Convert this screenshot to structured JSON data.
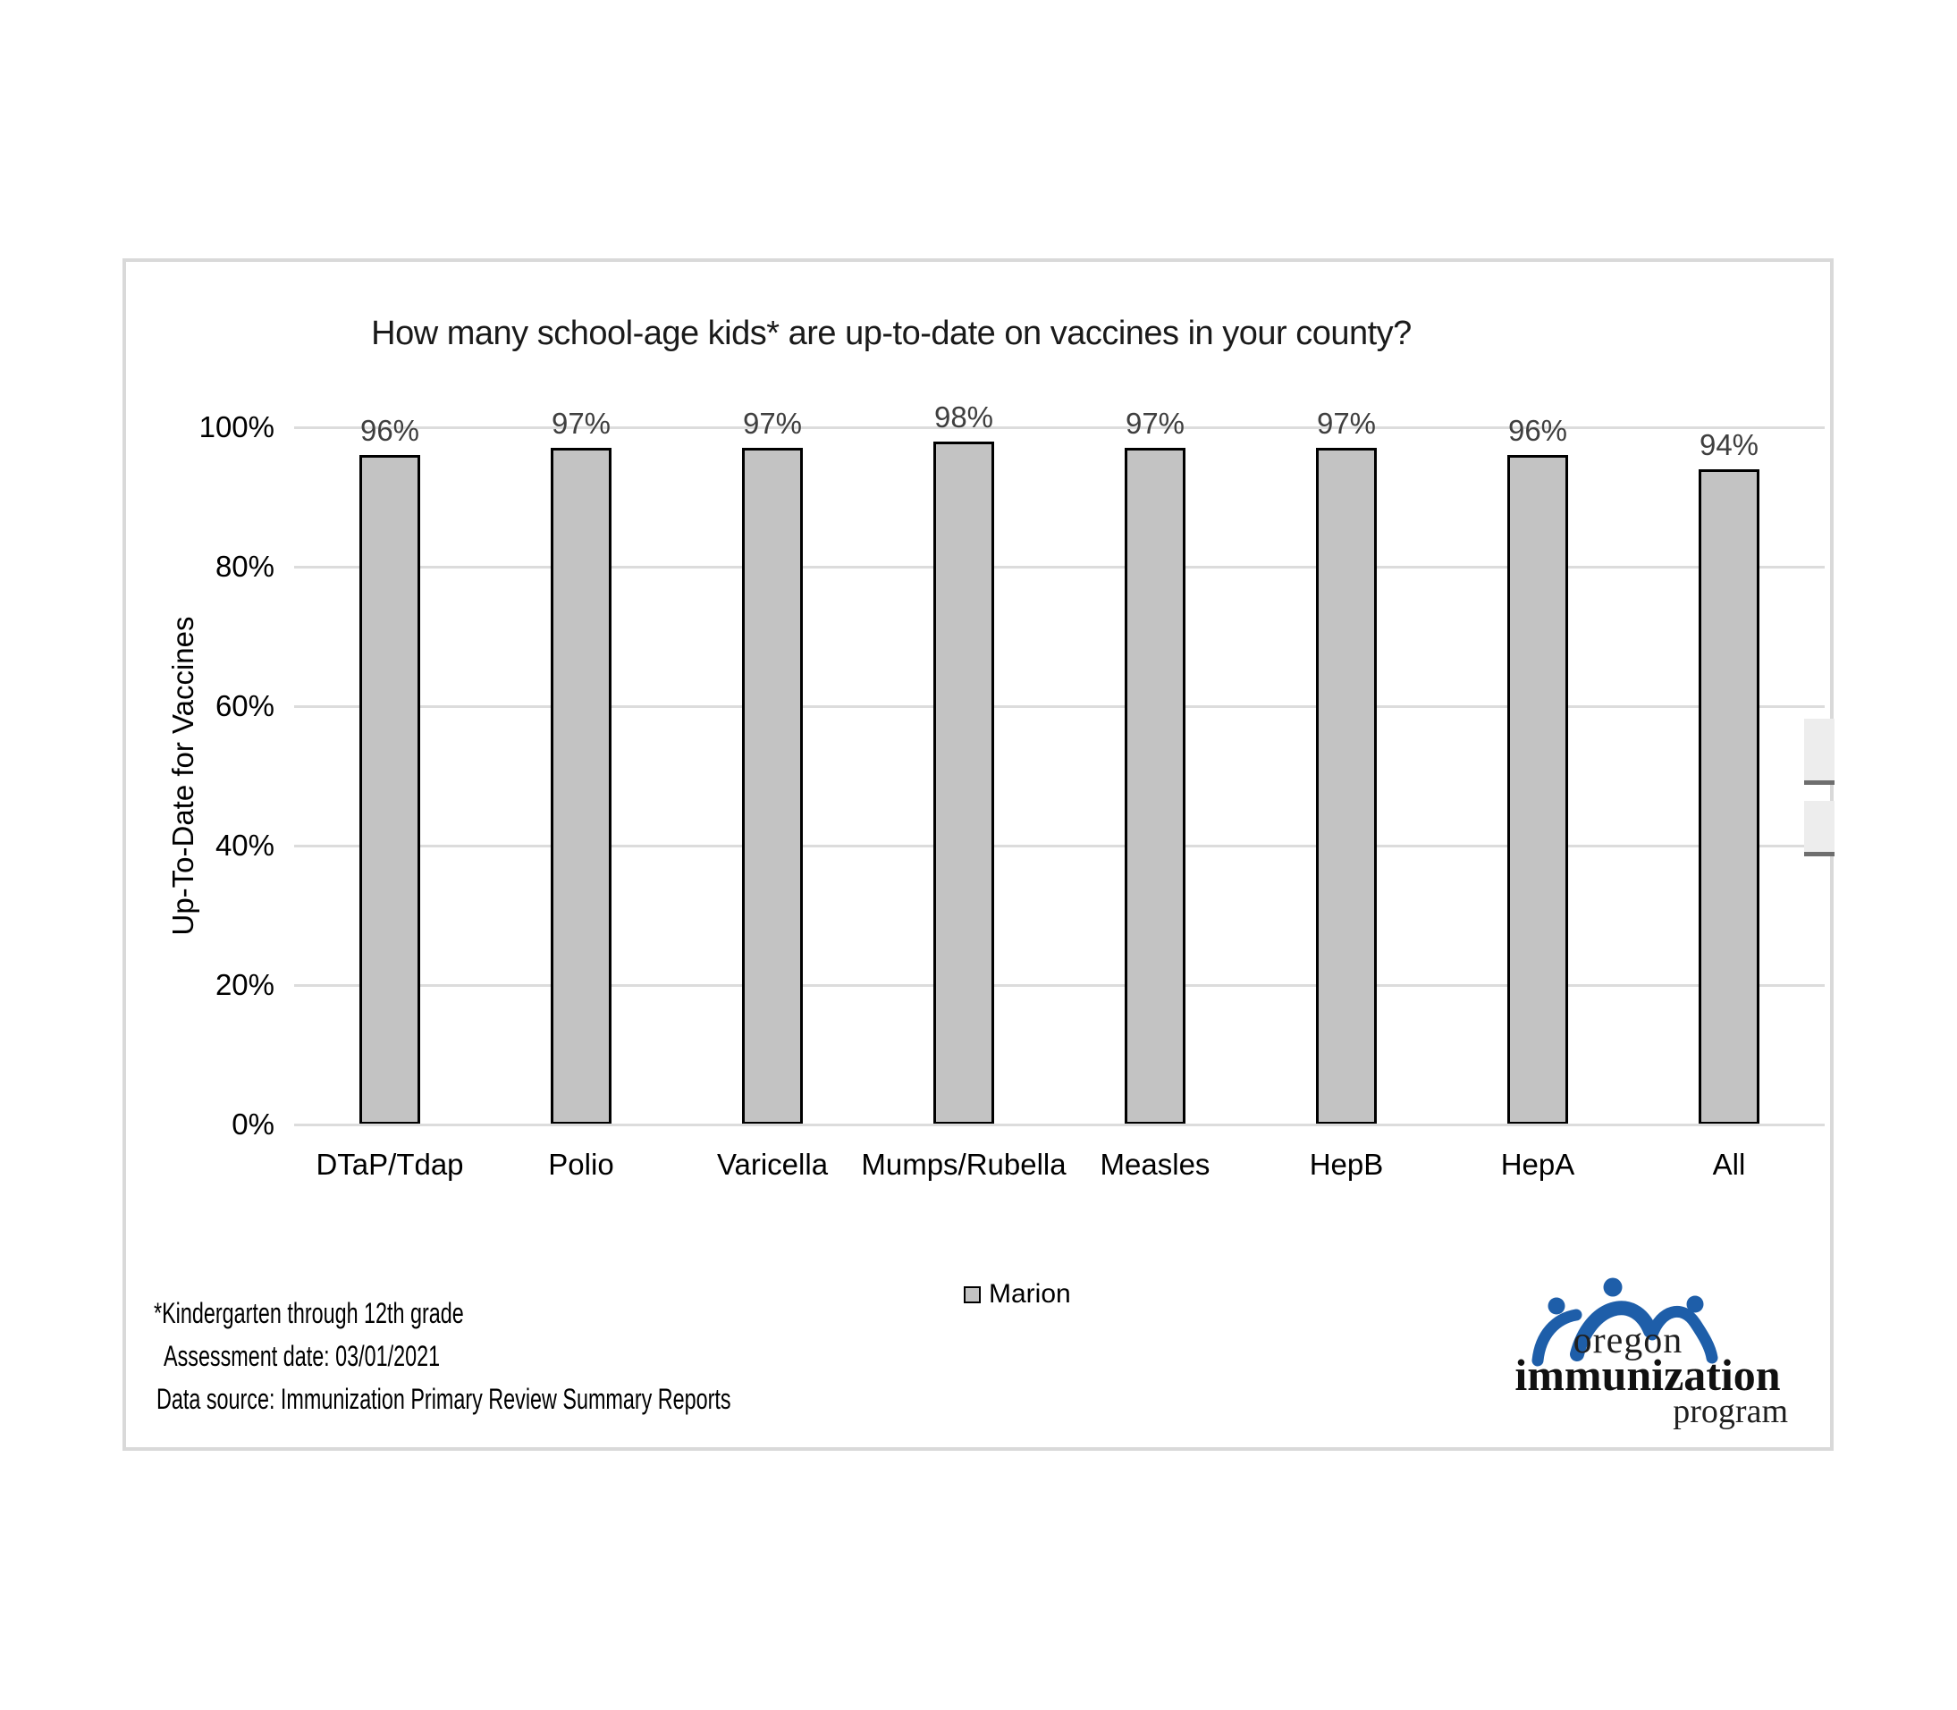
{
  "chart_data": {
    "type": "bar",
    "title": "How many school-age kids* are up-to-date on vaccines in your county?",
    "categories": [
      "DTaP/Tdap",
      "Polio",
      "Varicella",
      "Mumps/Rubella",
      "Measles",
      "HepB",
      "HepA",
      "All"
    ],
    "series": [
      {
        "name": "Marion",
        "values": [
          96,
          97,
          97,
          98,
          97,
          97,
          96,
          94
        ]
      }
    ],
    "data_labels": [
      "96%",
      "97%",
      "97%",
      "98%",
      "97%",
      "97%",
      "96%",
      "94%"
    ],
    "xlabel": "",
    "ylabel": "Up-To-Date for Vaccines",
    "ylim": [
      0,
      100
    ],
    "yticks": [
      0,
      20,
      40,
      60,
      80,
      100
    ],
    "ytick_labels": [
      "0%",
      "20%",
      "40%",
      "60%",
      "80%",
      "100%"
    ],
    "grid": true,
    "legend_position": "bottom"
  },
  "footer": {
    "line1": "*Kindergarten through 12th grade",
    "line2": "Assessment date: 03/01/2021",
    "line3": "Data source: Immunization Primary Review Summary Reports"
  },
  "logo": {
    "word1": "oregon",
    "word2": "immunization",
    "word3": "program"
  },
  "colors": {
    "bar_fill": "#c3c3c3",
    "bar_border": "#000000",
    "gridline": "#dcdcdc",
    "panel_border": "#d9d9d9",
    "data_label": "#3f3f3f",
    "logo_blue": "#1e5ea9",
    "text": "#000000"
  }
}
